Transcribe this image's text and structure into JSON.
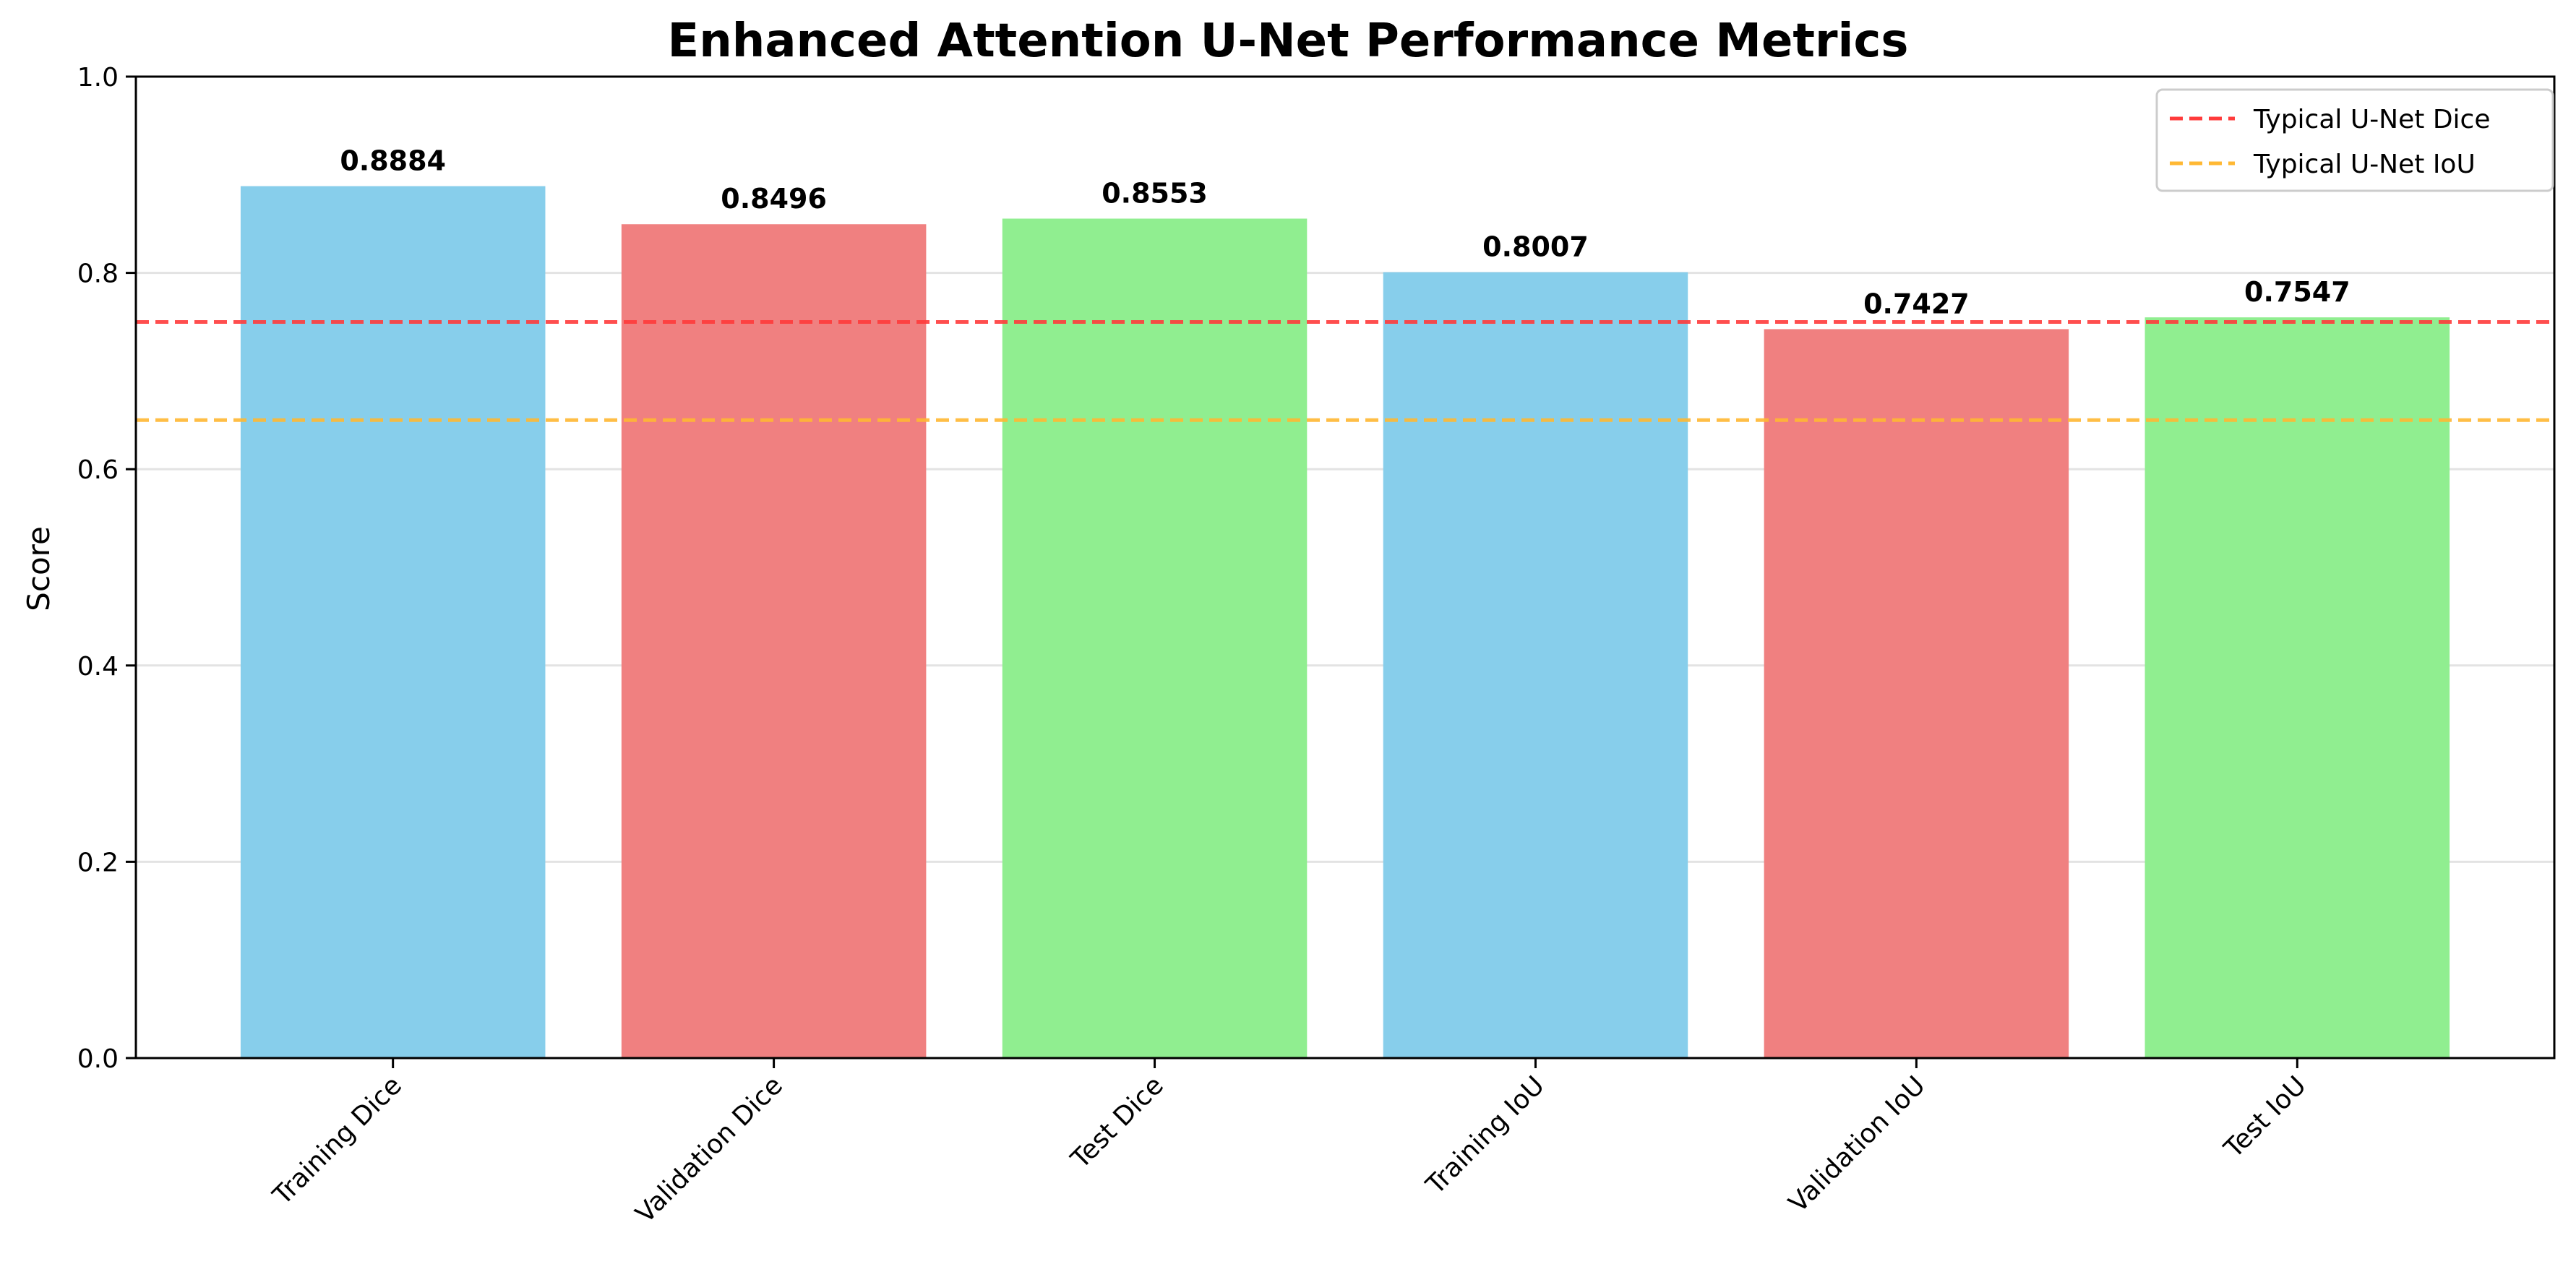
{
  "chart_data": {
    "type": "bar",
    "title": "Enhanced Attention U-Net Performance Metrics",
    "xlabel": "",
    "ylabel": "Score",
    "ylim": [
      0,
      1.0
    ],
    "yticks": [
      "0.0",
      "0.2",
      "0.4",
      "0.6",
      "0.8",
      "1.0"
    ],
    "grid": "y",
    "legend_position": "top-right",
    "categories": [
      "Training Dice",
      "Validation Dice",
      "Test Dice",
      "Training IoU",
      "Validation IoU",
      "Test IoU"
    ],
    "values": [
      0.8884,
      0.8496,
      0.8553,
      0.8007,
      0.7427,
      0.7547
    ],
    "value_labels": [
      "0.8884",
      "0.8496",
      "0.8553",
      "0.8007",
      "0.7427",
      "0.7547"
    ],
    "bar_colors": [
      "#87CEEB",
      "#F08080",
      "#90EE90",
      "#87CEEB",
      "#F08080",
      "#90EE90"
    ],
    "reference_lines": [
      {
        "name": "Typical U-Net Dice",
        "value": 0.75,
        "color": "#FF3B3B",
        "style": "dashed"
      },
      {
        "name": "Typical U-Net IoU",
        "value": 0.65,
        "color": "#FFB833",
        "style": "dashed"
      }
    ]
  }
}
